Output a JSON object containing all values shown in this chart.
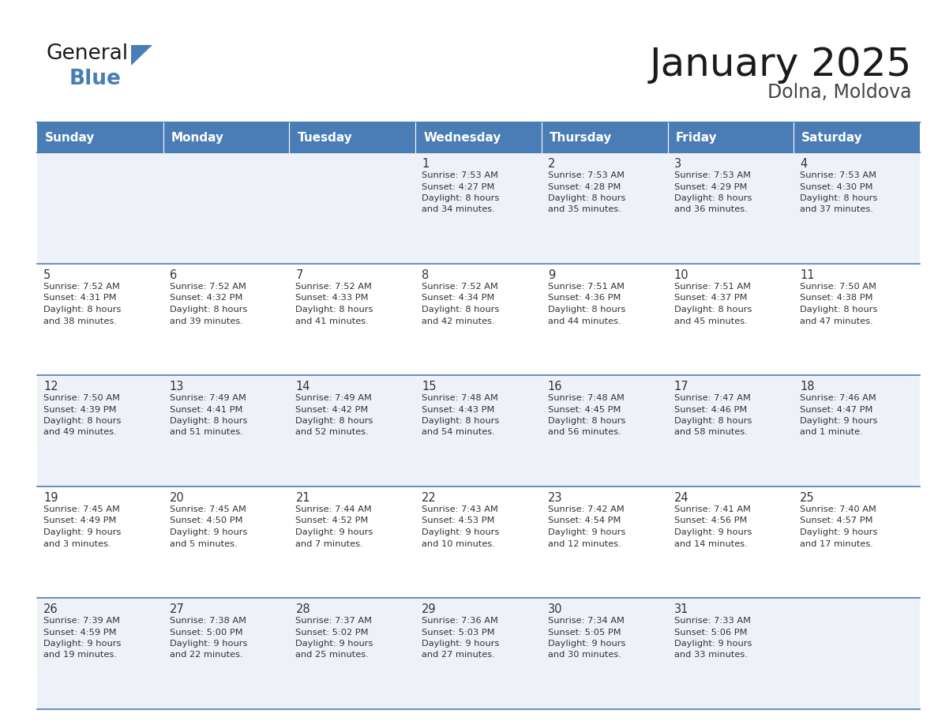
{
  "title": "January 2025",
  "subtitle": "Dolna, Moldova",
  "days_of_week": [
    "Sunday",
    "Monday",
    "Tuesday",
    "Wednesday",
    "Thursday",
    "Friday",
    "Saturday"
  ],
  "header_bg": "#4a7db5",
  "header_text": "#FFFFFF",
  "row_bg_odd": "#eef2f8",
  "row_bg_even": "#FFFFFF",
  "text_color": "#333333",
  "border_color": "#4a7db5",
  "calendar_data": [
    [
      null,
      null,
      null,
      {
        "day": 1,
        "sunrise": "7:53 AM",
        "sunset": "4:27 PM",
        "daylight": "8 hours",
        "daylight2": "and 34 minutes."
      },
      {
        "day": 2,
        "sunrise": "7:53 AM",
        "sunset": "4:28 PM",
        "daylight": "8 hours",
        "daylight2": "and 35 minutes."
      },
      {
        "day": 3,
        "sunrise": "7:53 AM",
        "sunset": "4:29 PM",
        "daylight": "8 hours",
        "daylight2": "and 36 minutes."
      },
      {
        "day": 4,
        "sunrise": "7:53 AM",
        "sunset": "4:30 PM",
        "daylight": "8 hours",
        "daylight2": "and 37 minutes."
      }
    ],
    [
      {
        "day": 5,
        "sunrise": "7:52 AM",
        "sunset": "4:31 PM",
        "daylight": "8 hours",
        "daylight2": "and 38 minutes."
      },
      {
        "day": 6,
        "sunrise": "7:52 AM",
        "sunset": "4:32 PM",
        "daylight": "8 hours",
        "daylight2": "and 39 minutes."
      },
      {
        "day": 7,
        "sunrise": "7:52 AM",
        "sunset": "4:33 PM",
        "daylight": "8 hours",
        "daylight2": "and 41 minutes."
      },
      {
        "day": 8,
        "sunrise": "7:52 AM",
        "sunset": "4:34 PM",
        "daylight": "8 hours",
        "daylight2": "and 42 minutes."
      },
      {
        "day": 9,
        "sunrise": "7:51 AM",
        "sunset": "4:36 PM",
        "daylight": "8 hours",
        "daylight2": "and 44 minutes."
      },
      {
        "day": 10,
        "sunrise": "7:51 AM",
        "sunset": "4:37 PM",
        "daylight": "8 hours",
        "daylight2": "and 45 minutes."
      },
      {
        "day": 11,
        "sunrise": "7:50 AM",
        "sunset": "4:38 PM",
        "daylight": "8 hours",
        "daylight2": "and 47 minutes."
      }
    ],
    [
      {
        "day": 12,
        "sunrise": "7:50 AM",
        "sunset": "4:39 PM",
        "daylight": "8 hours",
        "daylight2": "and 49 minutes."
      },
      {
        "day": 13,
        "sunrise": "7:49 AM",
        "sunset": "4:41 PM",
        "daylight": "8 hours",
        "daylight2": "and 51 minutes."
      },
      {
        "day": 14,
        "sunrise": "7:49 AM",
        "sunset": "4:42 PM",
        "daylight": "8 hours",
        "daylight2": "and 52 minutes."
      },
      {
        "day": 15,
        "sunrise": "7:48 AM",
        "sunset": "4:43 PM",
        "daylight": "8 hours",
        "daylight2": "and 54 minutes."
      },
      {
        "day": 16,
        "sunrise": "7:48 AM",
        "sunset": "4:45 PM",
        "daylight": "8 hours",
        "daylight2": "and 56 minutes."
      },
      {
        "day": 17,
        "sunrise": "7:47 AM",
        "sunset": "4:46 PM",
        "daylight": "8 hours",
        "daylight2": "and 58 minutes."
      },
      {
        "day": 18,
        "sunrise": "7:46 AM",
        "sunset": "4:47 PM",
        "daylight": "9 hours",
        "daylight2": "and 1 minute."
      }
    ],
    [
      {
        "day": 19,
        "sunrise": "7:45 AM",
        "sunset": "4:49 PM",
        "daylight": "9 hours",
        "daylight2": "and 3 minutes."
      },
      {
        "day": 20,
        "sunrise": "7:45 AM",
        "sunset": "4:50 PM",
        "daylight": "9 hours",
        "daylight2": "and 5 minutes."
      },
      {
        "day": 21,
        "sunrise": "7:44 AM",
        "sunset": "4:52 PM",
        "daylight": "9 hours",
        "daylight2": "and 7 minutes."
      },
      {
        "day": 22,
        "sunrise": "7:43 AM",
        "sunset": "4:53 PM",
        "daylight": "9 hours",
        "daylight2": "and 10 minutes."
      },
      {
        "day": 23,
        "sunrise": "7:42 AM",
        "sunset": "4:54 PM",
        "daylight": "9 hours",
        "daylight2": "and 12 minutes."
      },
      {
        "day": 24,
        "sunrise": "7:41 AM",
        "sunset": "4:56 PM",
        "daylight": "9 hours",
        "daylight2": "and 14 minutes."
      },
      {
        "day": 25,
        "sunrise": "7:40 AM",
        "sunset": "4:57 PM",
        "daylight": "9 hours",
        "daylight2": "and 17 minutes."
      }
    ],
    [
      {
        "day": 26,
        "sunrise": "7:39 AM",
        "sunset": "4:59 PM",
        "daylight": "9 hours",
        "daylight2": "and 19 minutes."
      },
      {
        "day": 27,
        "sunrise": "7:38 AM",
        "sunset": "5:00 PM",
        "daylight": "9 hours",
        "daylight2": "and 22 minutes."
      },
      {
        "day": 28,
        "sunrise": "7:37 AM",
        "sunset": "5:02 PM",
        "daylight": "9 hours",
        "daylight2": "and 25 minutes."
      },
      {
        "day": 29,
        "sunrise": "7:36 AM",
        "sunset": "5:03 PM",
        "daylight": "9 hours",
        "daylight2": "and 27 minutes."
      },
      {
        "day": 30,
        "sunrise": "7:34 AM",
        "sunset": "5:05 PM",
        "daylight": "9 hours",
        "daylight2": "and 30 minutes."
      },
      {
        "day": 31,
        "sunrise": "7:33 AM",
        "sunset": "5:06 PM",
        "daylight": "9 hours",
        "daylight2": "and 33 minutes."
      },
      null
    ]
  ],
  "logo_color_general": "#1a1a1a",
  "logo_color_blue": "#4a7db5",
  "logo_triangle_color": "#4a7db5"
}
